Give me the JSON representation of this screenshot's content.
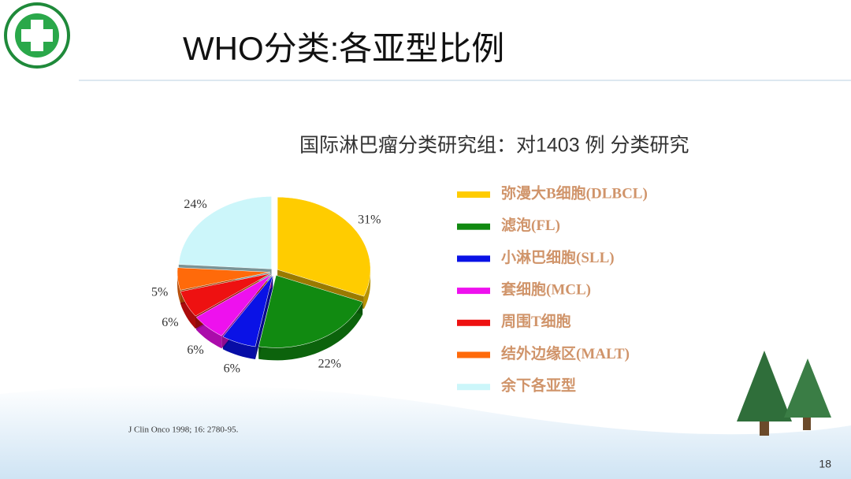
{
  "chart_data": {
    "type": "pie",
    "title": "WHO分类:各亚型比例",
    "subtitle": "国际淋巴瘤分类研究组：对1403 例  分类研究",
    "categories": [
      "弥漫大B细胞(DLBCL)",
      "滤泡(FL)",
      "小淋巴细胞(SLL)",
      "套细胞(MCL)",
      "周围T细胞",
      "结外边缘区(MALT)",
      "余下各亚型"
    ],
    "values": [
      31,
      22,
      6,
      6,
      6,
      5,
      24
    ],
    "value_labels": [
      "31%",
      "22%",
      "6%",
      "6%",
      "6%",
      "5%",
      "24%"
    ],
    "colors": [
      "#ffcc00",
      "#118a11",
      "#0a12e6",
      "#ee11ee",
      "#ee1111",
      "#ff6a0a",
      "#ccf6fa"
    ],
    "source": "J Clin Onco 1998; 16: 2780-95."
  },
  "page_number": "18"
}
